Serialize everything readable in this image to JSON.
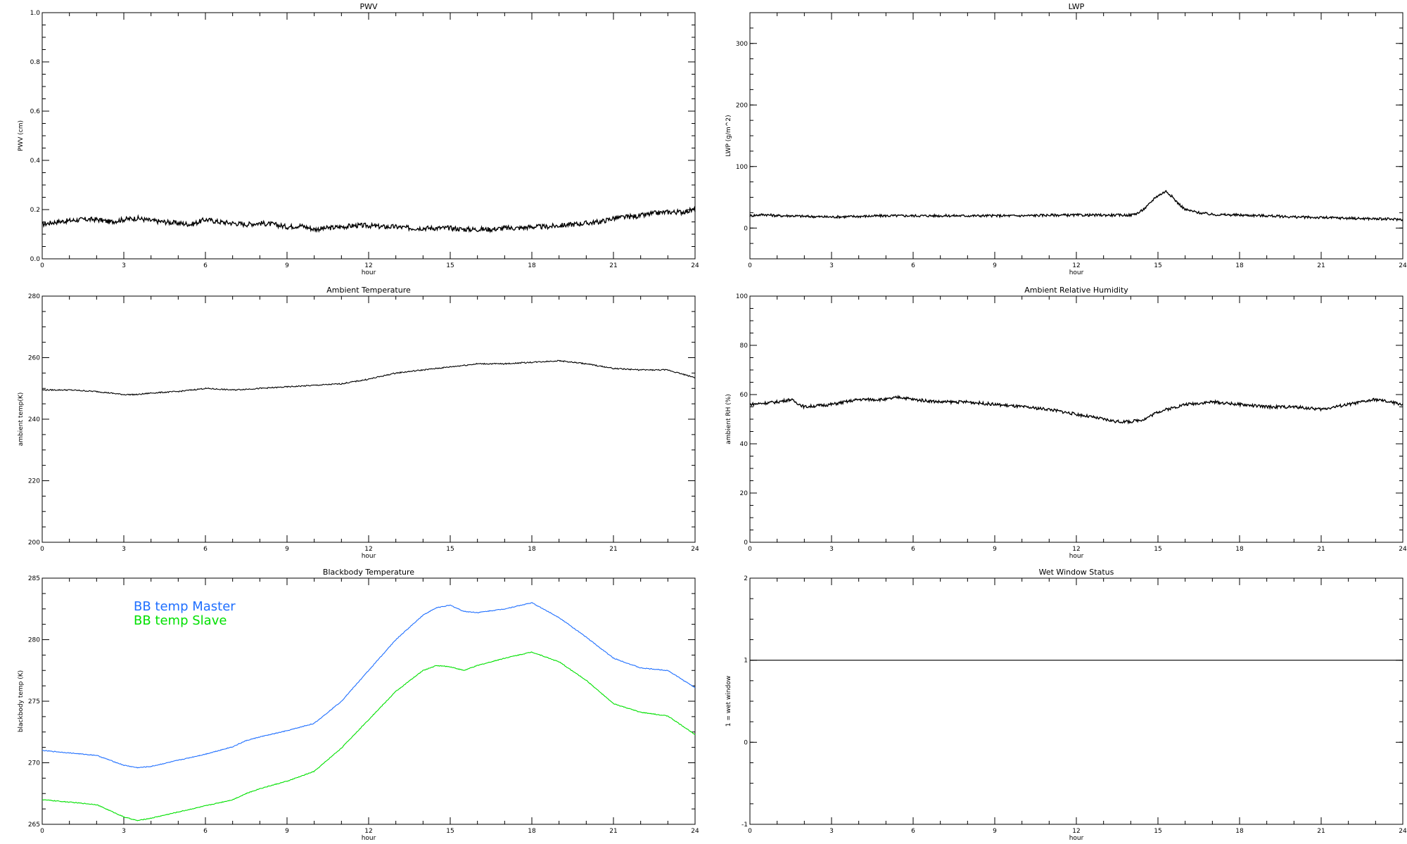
{
  "chart_data": [
    {
      "type": "line",
      "title": "PWV",
      "xlabel": "hour",
      "ylabel": "PWV (cm)",
      "xlim": [
        0,
        24
      ],
      "ylim": [
        0,
        1
      ],
      "xticks": [
        0,
        3,
        6,
        9,
        12,
        15,
        18,
        21,
        24
      ],
      "yticks": [
        0.0,
        0.2,
        0.4,
        0.6,
        0.8,
        1.0
      ],
      "ytick_labels": [
        "0.0",
        "0.2",
        "0.4",
        "0.6",
        "0.8",
        "1.0"
      ],
      "noise": 0.01,
      "series": [
        {
          "color": "#000000",
          "x": [
            0,
            0.5,
            1,
            1.5,
            2,
            2.5,
            3,
            3.5,
            4,
            4.5,
            5,
            5.5,
            6,
            6.5,
            7,
            7.5,
            8,
            8.5,
            9,
            9.5,
            10,
            10.5,
            11,
            11.5,
            12,
            12.5,
            13,
            13.5,
            14,
            14.5,
            15,
            15.5,
            16,
            16.5,
            17,
            17.5,
            18,
            18.5,
            19,
            19.5,
            20,
            20.5,
            21,
            21.5,
            22,
            22.5,
            23,
            23.5,
            24
          ],
          "y": [
            0.14,
            0.15,
            0.155,
            0.16,
            0.16,
            0.15,
            0.16,
            0.165,
            0.155,
            0.15,
            0.145,
            0.14,
            0.16,
            0.15,
            0.145,
            0.14,
            0.145,
            0.14,
            0.13,
            0.135,
            0.12,
            0.125,
            0.13,
            0.135,
            0.135,
            0.13,
            0.13,
            0.125,
            0.125,
            0.125,
            0.125,
            0.12,
            0.12,
            0.12,
            0.125,
            0.125,
            0.13,
            0.13,
            0.135,
            0.14,
            0.145,
            0.15,
            0.165,
            0.17,
            0.175,
            0.185,
            0.19,
            0.19,
            0.2
          ]
        }
      ]
    },
    {
      "type": "line",
      "title": "LWP",
      "xlabel": "hour",
      "ylabel": "LWP (g/m^2)",
      "xlim": [
        0,
        24
      ],
      "ylim": [
        -50,
        350
      ],
      "xticks": [
        0,
        3,
        6,
        9,
        12,
        15,
        18,
        21,
        24
      ],
      "yticks": [
        0,
        100,
        200,
        300
      ],
      "ytick_labels": [
        "0",
        "100",
        "200",
        "300"
      ],
      "noise": 2,
      "series": [
        {
          "color": "#000000",
          "x": [
            0,
            0.5,
            1,
            1.5,
            2,
            3,
            4,
            5,
            6,
            7,
            8,
            9,
            10,
            11,
            12,
            13,
            14,
            14.3,
            14.6,
            14.9,
            15.1,
            15.3,
            15.5,
            15.7,
            16,
            16.5,
            17,
            18,
            19,
            20,
            21,
            22,
            23,
            24
          ],
          "y": [
            20,
            22,
            20,
            20,
            19,
            18,
            19,
            20,
            20,
            20,
            20,
            20,
            20,
            21,
            21,
            21,
            21,
            25,
            35,
            50,
            55,
            60,
            52,
            42,
            30,
            25,
            22,
            21,
            20,
            18,
            17,
            16,
            15,
            14
          ]
        }
      ]
    },
    {
      "type": "line",
      "title": "Ambient Temperature",
      "xlabel": "hour",
      "ylabel": "ambient temp(K)",
      "xlim": [
        0,
        24
      ],
      "ylim": [
        200,
        280
      ],
      "xticks": [
        0,
        3,
        6,
        9,
        12,
        15,
        18,
        21,
        24
      ],
      "yticks": [
        200,
        220,
        240,
        260,
        280
      ],
      "ytick_labels": [
        "200",
        "220",
        "240",
        "260",
        "280"
      ],
      "noise": 0.2,
      "series": [
        {
          "color": "#000000",
          "x": [
            0,
            1,
            2,
            3,
            3.5,
            4,
            5,
            6,
            7,
            8,
            9,
            10,
            11,
            12,
            13,
            14,
            15,
            16,
            17,
            18,
            19,
            20,
            21,
            22,
            23,
            24
          ],
          "y": [
            249.5,
            249.5,
            249,
            248,
            248,
            248.5,
            249,
            250,
            249.5,
            250,
            250.5,
            251,
            251.5,
            253,
            255,
            256,
            257,
            258,
            258,
            258.5,
            259,
            258,
            256.5,
            256,
            256,
            253.5
          ]
        }
      ]
    },
    {
      "type": "line",
      "title": "Ambient Relative Humidity",
      "xlabel": "hour",
      "ylabel": "ambient RH (%)",
      "xlim": [
        0,
        24
      ],
      "ylim": [
        0,
        100
      ],
      "xticks": [
        0,
        3,
        6,
        9,
        12,
        15,
        18,
        21,
        24
      ],
      "yticks": [
        0,
        20,
        40,
        60,
        80,
        100
      ],
      "ytick_labels": [
        "0",
        "20",
        "40",
        "60",
        "80",
        "100"
      ],
      "noise": 0.6,
      "series": [
        {
          "color": "#000000",
          "x": [
            0,
            1,
            1.5,
            2,
            3,
            4,
            5,
            5.5,
            6,
            7,
            8,
            9,
            10,
            11,
            12,
            13,
            13.5,
            14,
            14.5,
            15,
            16,
            17,
            18,
            19,
            20,
            21,
            22,
            23,
            24
          ],
          "y": [
            56,
            57,
            58,
            55,
            56,
            58,
            58,
            59,
            58,
            57,
            57,
            56,
            55,
            54,
            52,
            50,
            49,
            49,
            50,
            53,
            56,
            57,
            56,
            55,
            55,
            54,
            56,
            58,
            56
          ]
        }
      ]
    },
    {
      "type": "line",
      "title": "Blackbody Temperature",
      "xlabel": "hour",
      "ylabel": "blackbody temp (K)",
      "xlim": [
        0,
        24
      ],
      "ylim": [
        265,
        285
      ],
      "xticks": [
        0,
        3,
        6,
        9,
        12,
        15,
        18,
        21,
        24
      ],
      "yticks": [
        265,
        270,
        275,
        280,
        285
      ],
      "ytick_labels": [
        "265",
        "270",
        "275",
        "280",
        "285"
      ],
      "legend": "top-left",
      "noise": 0.03,
      "series": [
        {
          "name": "BB temp Master",
          "color": "#1f6fff",
          "x": [
            0,
            1,
            2,
            3,
            3.5,
            4,
            5,
            6,
            7,
            7.5,
            8,
            9,
            10,
            11,
            12,
            13,
            14,
            14.5,
            15,
            15.5,
            16,
            17,
            18,
            19,
            20,
            21,
            22,
            23,
            24
          ],
          "y": [
            271,
            270.8,
            270.6,
            269.8,
            269.6,
            269.7,
            270.2,
            270.7,
            271.3,
            271.8,
            272.1,
            272.6,
            273.2,
            275.0,
            277.5,
            280.0,
            282.0,
            282.6,
            282.8,
            282.3,
            282.2,
            282.5,
            283.0,
            281.8,
            280.2,
            278.5,
            277.7,
            277.5,
            276.1
          ]
        },
        {
          "name": "BB temp Slave",
          "color": "#00e000",
          "x": [
            0,
            1,
            2,
            3,
            3.5,
            4,
            5,
            6,
            7,
            7.5,
            8,
            9,
            10,
            11,
            12,
            13,
            14,
            14.5,
            15,
            15.5,
            16,
            17,
            18,
            19,
            20,
            21,
            22,
            23,
            24
          ],
          "y": [
            267,
            266.8,
            266.6,
            265.6,
            265.3,
            265.5,
            266.0,
            266.5,
            267.0,
            267.5,
            267.9,
            268.5,
            269.3,
            271.2,
            273.5,
            275.8,
            277.5,
            277.9,
            277.8,
            277.5,
            277.9,
            278.5,
            279.0,
            278.2,
            276.7,
            274.8,
            274.1,
            273.8,
            272.3
          ]
        }
      ]
    },
    {
      "type": "line",
      "title": "Wet Window Status",
      "xlabel": "hour",
      "ylabel": "1 = wet window",
      "xlim": [
        0,
        24
      ],
      "ylim": [
        -1,
        2
      ],
      "xticks": [
        0,
        3,
        6,
        9,
        12,
        15,
        18,
        21,
        24
      ],
      "yticks": [
        -1,
        0,
        1,
        2
      ],
      "ytick_labels": [
        "-1",
        "0",
        "1",
        "2"
      ],
      "noise": 0,
      "series": [
        {
          "color": "#000000",
          "x": [
            0,
            24
          ],
          "y": [
            1,
            1
          ]
        }
      ]
    }
  ]
}
